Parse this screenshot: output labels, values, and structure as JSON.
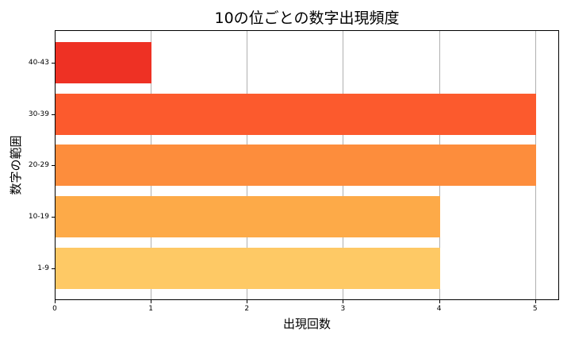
{
  "chart_data": {
    "type": "bar",
    "orientation": "horizontal",
    "title": "10の位ごとの数字出現頻度",
    "xlabel": "出現回数",
    "ylabel": "数字の範囲",
    "categories": [
      "1-9",
      "10-19",
      "20-29",
      "30-39",
      "40-43"
    ],
    "values": [
      4,
      4,
      5,
      5,
      1
    ],
    "colors": [
      "#fec965",
      "#fdaa48",
      "#fd8d3c",
      "#fc5a2d",
      "#ee3124"
    ],
    "xlim": [
      0,
      5.25
    ],
    "xticks": [
      "0",
      "1",
      "2",
      "3",
      "4",
      "5"
    ],
    "grid": {
      "x": true,
      "y": false
    },
    "legend": null
  }
}
